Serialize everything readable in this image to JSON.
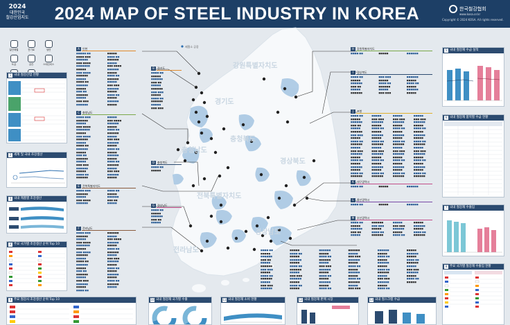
{
  "header": {
    "year": "2024",
    "subtitle_line1": "대한민국",
    "subtitle_line2": "철강산업지도",
    "title": "2024 MAP OF STEEL INDUSTRY IN KOREA",
    "org_name": "한국철강협회",
    "org_url": "www.kosa.or.kr",
    "copyright": "Copyright © 2024 KOSA. All rights reserved."
  },
  "legend_icons": [
    {
      "label": "일관제철",
      "icon": "furnace-icon"
    },
    {
      "label": "전기로",
      "icon": "electric-furnace-icon"
    },
    {
      "label": "냉연",
      "icon": "coil-icon"
    },
    {
      "label": "도금",
      "icon": "plating-icon"
    },
    {
      "label": "강관",
      "icon": "pipe-icon"
    },
    {
      "label": "스테인리스",
      "icon": "stainless-icon"
    },
    {
      "label": "특수강",
      "icon": "special-steel-icon"
    },
    {
      "label": "단조",
      "icon": "forging-icon"
    }
  ],
  "map": {
    "regions": [
      "서울",
      "인천",
      "경기도",
      "강원특별자치도",
      "충청북도",
      "충청남도",
      "전북특별자치도",
      "경상북도",
      "전라남도",
      "경상남도"
    ],
    "legend": "제철소  공장"
  },
  "categories": [
    {
      "letter": "A",
      "name": "인천",
      "color": "#e08a2c"
    },
    {
      "letter": "B",
      "name": "경기도",
      "color": "#e08a2c"
    },
    {
      "letter": "C",
      "name": "충청남도",
      "color": "#7aa84a"
    },
    {
      "letter": "D",
      "name": "충청북도",
      "color": "#2c4b70"
    },
    {
      "letter": "E",
      "name": "전북특별자치도",
      "color": "#8a5a3c"
    },
    {
      "letter": "F",
      "name": "전라남도",
      "color": "#8a5a3c"
    },
    {
      "letter": "G",
      "name": "경상남도",
      "color": "#c24d8a"
    },
    {
      "letter": "H",
      "name": "강원특별자치도",
      "color": "#7aa84a"
    },
    {
      "letter": "I",
      "name": "경상북도",
      "color": "#2c4b70"
    },
    {
      "letter": "J",
      "name": "포항",
      "color": "#e0b02c"
    },
    {
      "letter": "K",
      "name": "대구광역시",
      "color": "#c24d8a"
    },
    {
      "letter": "L",
      "name": "울산광역시",
      "color": "#7a4aa8"
    },
    {
      "letter": "M",
      "name": "부산광역시",
      "color": "#c24d8a"
    }
  ],
  "left_panels": [
    {
      "num": "1",
      "title": "국내 철강산업 현황"
    },
    {
      "num": "2",
      "title": "세계 및 국내 조강생산"
    },
    {
      "num": "3",
      "title": "국내 제품별 조강생산"
    },
    {
      "num": "4",
      "title": "주요 국가별 조강생산 순위 Top 10"
    }
  ],
  "right_panels": [
    {
      "num": "5",
      "title": "국내 철강재 수급 실적"
    },
    {
      "num": "6",
      "title": "국내 철강재 품목별 수급 현황"
    },
    {
      "num": "7",
      "title": "국내 철강재 수출입"
    },
    {
      "num": "8",
      "title": "주요 국가별 철강재 수출입 현황"
    }
  ],
  "bottom_panels": [
    {
      "num": "9",
      "title": "주요 철강사 조강생산 순위 Top 10"
    },
    {
      "num": "10",
      "title": "국내 철강재 국가별 수출"
    },
    {
      "num": "11",
      "title": "국내 철강재 소비 현황"
    },
    {
      "num": "12",
      "title": "국내 철강재 판매 시장"
    },
    {
      "num": "13",
      "title": "국내 철스크랩 수급"
    }
  ],
  "colors": {
    "navy": "#1d3f66",
    "map_land": "#f7f9fb",
    "map_metro": "#a9c8e3",
    "sea": "#e4e9ee"
  }
}
